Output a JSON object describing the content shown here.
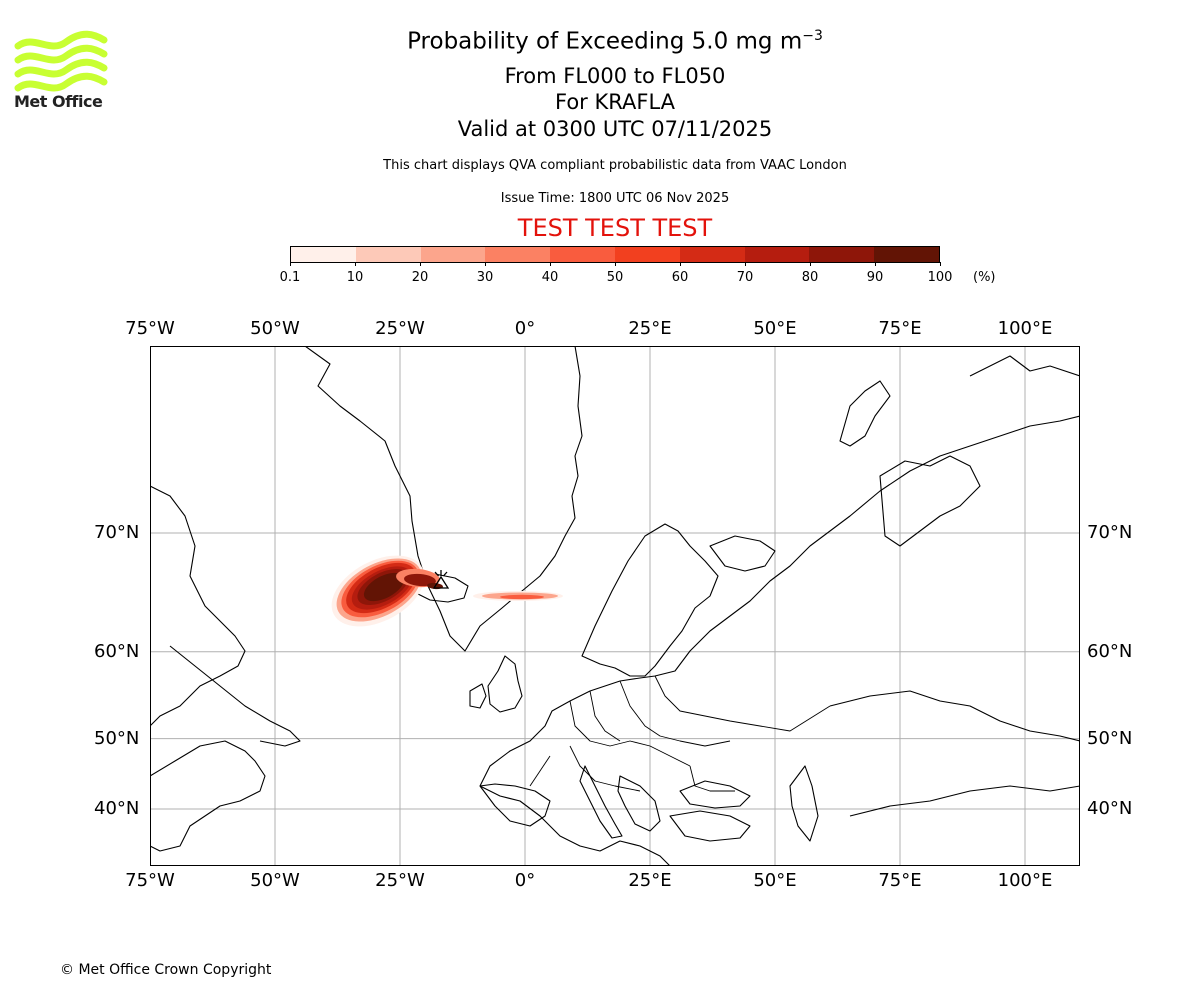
{
  "logo": {
    "text": "Met Office",
    "color": "#c8ff32"
  },
  "header": {
    "title_main": "Probability of Exceeding 5.0 mg m",
    "title_exponent": "−3",
    "line1": "From FL000 to FL050",
    "line2": "For KRAFLA",
    "line3": "Valid at 0300 UTC 07/11/2025",
    "description": "This chart displays QVA compliant probabilistic data from VAAC London",
    "issue_time": "Issue Time: 1800 UTC 06 Nov 2025",
    "test_banner": "TEST TEST TEST",
    "test_color": "#e3120b"
  },
  "colorbar": {
    "labels": [
      "0.1",
      "10",
      "20",
      "30",
      "40",
      "50",
      "60",
      "70",
      "80",
      "90",
      "100"
    ],
    "unit": "(%)",
    "colors": [
      "#fff0ea",
      "#fdc9b8",
      "#fca58c",
      "#fb8163",
      "#f95c3e",
      "#f2401f",
      "#d42b15",
      "#b51d0f",
      "#8e1609",
      "#621405"
    ]
  },
  "map": {
    "lon_labels": [
      "75°W",
      "50°W",
      "25°W",
      "0°",
      "25°E",
      "50°E",
      "75°E",
      "100°E"
    ],
    "lat_labels": [
      "70°N",
      "60°N",
      "50°N",
      "40°N"
    ],
    "lon_ticks": [
      -75,
      -50,
      -25,
      0,
      25,
      50,
      75,
      100
    ],
    "lat_ticks": [
      70,
      60,
      50,
      40
    ],
    "lon_range": [
      -75,
      111
    ],
    "grid": true,
    "plume_color_scale": "colorbar.colors"
  },
  "footer": {
    "copyright": "© Met Office Crown Copyright"
  }
}
